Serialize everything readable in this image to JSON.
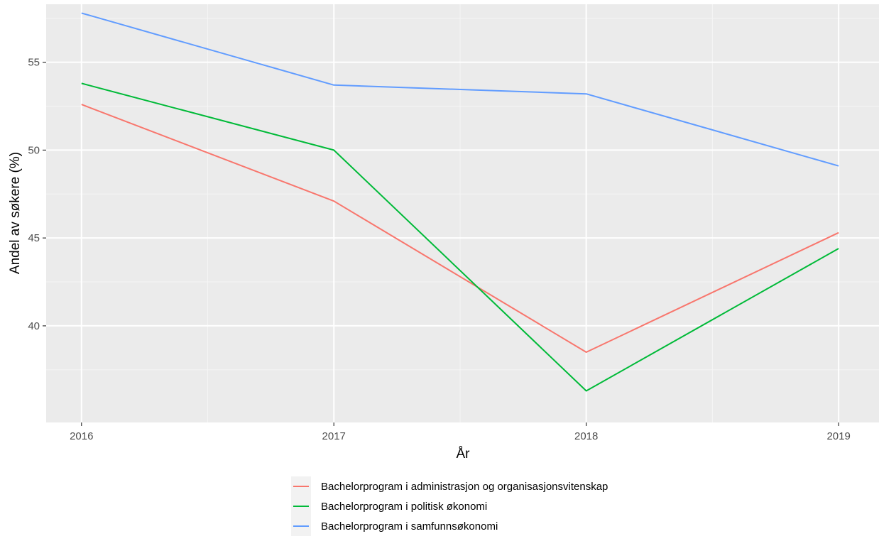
{
  "chart_data": {
    "type": "line",
    "xlabel": "År",
    "ylabel": "Andel av søkere (%)",
    "x": [
      2016,
      2017,
      2018,
      2019
    ],
    "x_ticks": [
      "2016",
      "2017",
      "2018",
      "2019"
    ],
    "y_ticks": [
      "40",
      "45",
      "50",
      "55"
    ],
    "xlim": [
      2015.86,
      2019.16
    ],
    "ylim": [
      34.5,
      58.3
    ],
    "grid": true,
    "legend_position": "bottom",
    "series": [
      {
        "name": "Bachelorprogram i administrasjon og organisasjonsvitenskap",
        "color": "#F8766D",
        "values": [
          52.6,
          47.1,
          38.5,
          45.3
        ]
      },
      {
        "name": "Bachelorprogram i politisk økonomi",
        "color": "#00BA38",
        "values": [
          53.8,
          50.0,
          36.3,
          44.4
        ]
      },
      {
        "name": "Bachelorprogram i samfunnsøkonomi",
        "color": "#619CFF",
        "values": [
          57.8,
          53.7,
          53.2,
          49.1
        ]
      }
    ]
  }
}
